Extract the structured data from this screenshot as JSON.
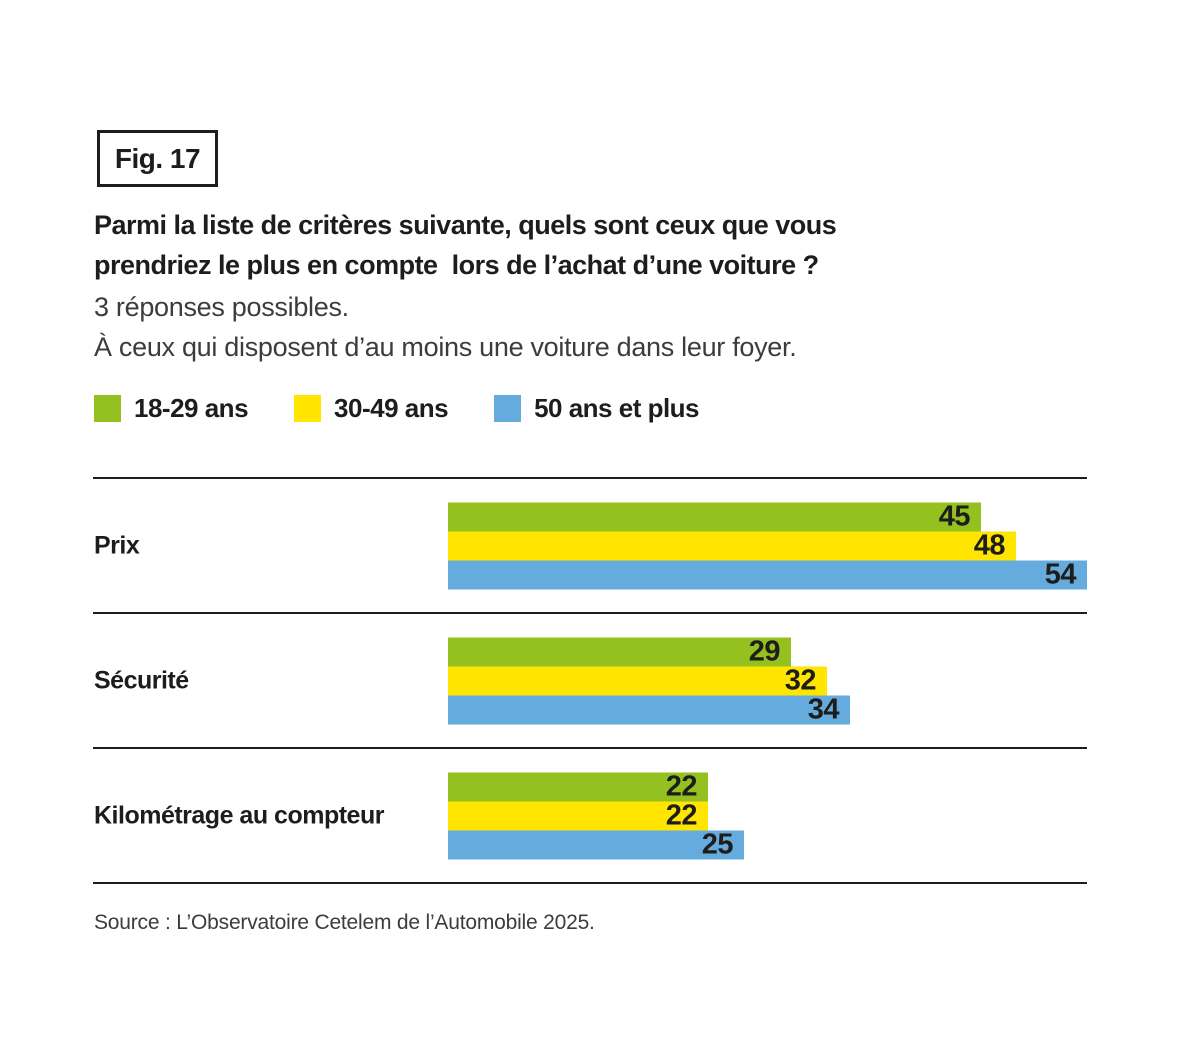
{
  "figure": {
    "label": "Fig. 17"
  },
  "title": "Parmi la liste de critères suivante, quels sont ceux que vous\nprendriez le plus en compte  lors de l’achat d’une voiture ?",
  "subtitle": "3 réponses possibles.\nÀ ceux qui disposent d’au moins une voiture dans leur foyer.",
  "source": "Source : L’Observatoire Cetelem de l’Automobile 2025.",
  "colors": {
    "green": "#94c11f",
    "yellow": "#ffe500",
    "blue": "#66abdd",
    "line": "#1d1d1b",
    "text": "#1d1d1b",
    "muted_text": "#3c3c3b"
  },
  "chart_data": {
    "type": "bar",
    "orientation": "horizontal",
    "title": "Parmi la liste de critères suivante, quels sont ceux que vous prendriez le plus en compte  lors de l’achat d’une voiture ?",
    "subtitle": "3 réponses possibles. À ceux qui disposent d’au moins une voiture dans leur foyer.",
    "categories": [
      "Prix",
      "Sécurité",
      "Kilométrage au compteur"
    ],
    "series": [
      {
        "name": "18-29 ans",
        "color": "#94c11f",
        "values": [
          45,
          29,
          22
        ]
      },
      {
        "name": "30-49 ans",
        "color": "#ffe500",
        "values": [
          48,
          32,
          22
        ]
      },
      {
        "name": "50 ans et plus",
        "color": "#66abdd",
        "values": [
          54,
          34,
          25
        ]
      }
    ],
    "xlim": [
      0,
      54
    ],
    "grid": false,
    "legend_position": "top",
    "value_labels": "inside-end"
  }
}
